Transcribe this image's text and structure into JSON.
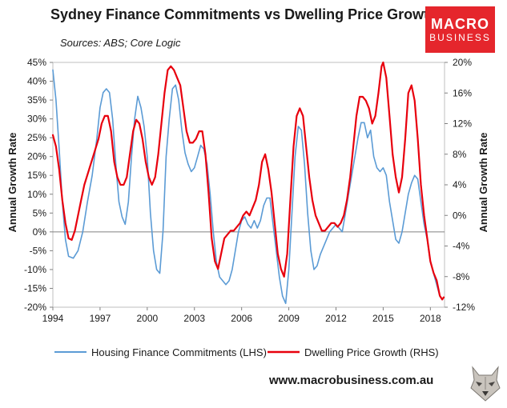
{
  "header": {
    "title": "Sydney Finance Commitments vs Dwelling Price Growth",
    "sources": "Sources: ABS; Core Logic"
  },
  "logo": {
    "line1": "MACRO",
    "line2": "BUSINESS"
  },
  "footer": {
    "website": "www.macrobusiness.com.au"
  },
  "chart_data": {
    "type": "line",
    "title": "Sydney Finance Commitments vs Dwelling Price Growth",
    "subtitle": "Sources: ABS; Core Logic",
    "xlabel": "",
    "ylabel_left": "Annual Growth Rate",
    "ylabel_right": "Annual Growth Rate",
    "xlim": [
      1994.0,
      2018.9
    ],
    "x_ticks": [
      1994,
      1997,
      2000,
      2003,
      2006,
      2009,
      2012,
      2015,
      2018
    ],
    "x_tick_labels": [
      "1994",
      "1997",
      "2000",
      "2003",
      "2006",
      "2009",
      "2012",
      "2015",
      "2018"
    ],
    "ylim_left": [
      -20,
      45
    ],
    "y_ticks_left": [
      -20,
      -15,
      -10,
      -5,
      0,
      5,
      10,
      15,
      20,
      25,
      30,
      35,
      40,
      45
    ],
    "y_tick_labels_left": [
      "-20%",
      "-15%",
      "-10%",
      "-5%",
      "0%",
      "5%",
      "10%",
      "15%",
      "20%",
      "25%",
      "30%",
      "35%",
      "40%",
      "45%"
    ],
    "ylim_right": [
      -12,
      20
    ],
    "y_ticks_right": [
      -12,
      -8,
      -4,
      0,
      4,
      8,
      12,
      16,
      20
    ],
    "y_tick_labels_right": [
      "-12%",
      "-8%",
      "-4%",
      "0%",
      "4%",
      "8%",
      "12%",
      "16%",
      "20%"
    ],
    "grid": false,
    "legend_position": "bottom",
    "series": [
      {
        "name": "Housing Finance Commitments (LHS)",
        "axis": "left",
        "color": "#5b9bd5",
        "points": [
          [
            1994.0,
            43
          ],
          [
            1994.2,
            35
          ],
          [
            1994.4,
            22
          ],
          [
            1994.6,
            8
          ],
          [
            1994.8,
            -2
          ],
          [
            1995.0,
            -6.5
          ],
          [
            1995.3,
            -7
          ],
          [
            1995.6,
            -5
          ],
          [
            1995.9,
            0
          ],
          [
            1996.2,
            8
          ],
          [
            1996.5,
            15
          ],
          [
            1996.8,
            25
          ],
          [
            1997.0,
            33
          ],
          [
            1997.2,
            37
          ],
          [
            1997.4,
            38
          ],
          [
            1997.6,
            37
          ],
          [
            1997.8,
            30
          ],
          [
            1998.0,
            18
          ],
          [
            1998.2,
            8
          ],
          [
            1998.4,
            4
          ],
          [
            1998.6,
            2
          ],
          [
            1998.8,
            8
          ],
          [
            1999.0,
            20
          ],
          [
            1999.2,
            30
          ],
          [
            1999.4,
            36
          ],
          [
            1999.6,
            33
          ],
          [
            1999.8,
            28
          ],
          [
            2000.0,
            20
          ],
          [
            2000.2,
            5
          ],
          [
            2000.4,
            -5
          ],
          [
            2000.6,
            -10
          ],
          [
            2000.8,
            -11
          ],
          [
            2001.0,
            0
          ],
          [
            2001.2,
            20
          ],
          [
            2001.4,
            30
          ],
          [
            2001.6,
            38
          ],
          [
            2001.8,
            39
          ],
          [
            2002.0,
            35
          ],
          [
            2002.2,
            27
          ],
          [
            2002.4,
            21
          ],
          [
            2002.6,
            18
          ],
          [
            2002.8,
            16
          ],
          [
            2003.0,
            17
          ],
          [
            2003.2,
            20
          ],
          [
            2003.4,
            23
          ],
          [
            2003.6,
            22
          ],
          [
            2003.8,
            18
          ],
          [
            2004.0,
            10
          ],
          [
            2004.2,
            0
          ],
          [
            2004.4,
            -8
          ],
          [
            2004.6,
            -12
          ],
          [
            2004.8,
            -13
          ],
          [
            2005.0,
            -14
          ],
          [
            2005.2,
            -13
          ],
          [
            2005.4,
            -10
          ],
          [
            2005.6,
            -5
          ],
          [
            2005.8,
            0
          ],
          [
            2006.0,
            3
          ],
          [
            2006.2,
            4
          ],
          [
            2006.4,
            2
          ],
          [
            2006.6,
            1
          ],
          [
            2006.8,
            3
          ],
          [
            2007.0,
            1
          ],
          [
            2007.2,
            3
          ],
          [
            2007.4,
            7
          ],
          [
            2007.6,
            9
          ],
          [
            2007.8,
            9
          ],
          [
            2008.0,
            2
          ],
          [
            2008.2,
            -5
          ],
          [
            2008.4,
            -12
          ],
          [
            2008.6,
            -17
          ],
          [
            2008.8,
            -19
          ],
          [
            2009.0,
            -10
          ],
          [
            2009.2,
            5
          ],
          [
            2009.4,
            20
          ],
          [
            2009.6,
            28
          ],
          [
            2009.8,
            27
          ],
          [
            2010.0,
            18
          ],
          [
            2010.2,
            5
          ],
          [
            2010.4,
            -5
          ],
          [
            2010.6,
            -10
          ],
          [
            2010.8,
            -9
          ],
          [
            2011.0,
            -6
          ],
          [
            2011.2,
            -4
          ],
          [
            2011.4,
            -2
          ],
          [
            2011.6,
            0
          ],
          [
            2011.8,
            1
          ],
          [
            2012.0,
            2
          ],
          [
            2012.2,
            1
          ],
          [
            2012.4,
            0
          ],
          [
            2012.6,
            5
          ],
          [
            2012.8,
            10
          ],
          [
            2013.0,
            15
          ],
          [
            2013.2,
            20
          ],
          [
            2013.4,
            25
          ],
          [
            2013.6,
            29
          ],
          [
            2013.8,
            29
          ],
          [
            2014.0,
            25
          ],
          [
            2014.2,
            27
          ],
          [
            2014.4,
            20
          ],
          [
            2014.6,
            17
          ],
          [
            2014.8,
            16
          ],
          [
            2015.0,
            17
          ],
          [
            2015.2,
            15
          ],
          [
            2015.4,
            8
          ],
          [
            2015.6,
            3
          ],
          [
            2015.8,
            -2
          ],
          [
            2016.0,
            -3
          ],
          [
            2016.2,
            0
          ],
          [
            2016.4,
            5
          ],
          [
            2016.6,
            10
          ],
          [
            2016.8,
            13
          ],
          [
            2017.0,
            15
          ],
          [
            2017.2,
            14
          ],
          [
            2017.4,
            8
          ],
          [
            2017.6,
            2
          ],
          [
            2017.8,
            -2
          ],
          [
            2018.0,
            -8
          ],
          [
            2018.2,
            -11
          ],
          [
            2018.4,
            -14
          ],
          [
            2018.6,
            -17
          ],
          [
            2018.75,
            -18
          ]
        ]
      },
      {
        "name": "Dwelling Price Growth (RHS)",
        "axis": "right",
        "color": "#e8000d",
        "points": [
          [
            1994.0,
            10.5
          ],
          [
            1994.2,
            9
          ],
          [
            1994.4,
            6
          ],
          [
            1994.6,
            2
          ],
          [
            1994.8,
            -1
          ],
          [
            1995.0,
            -3
          ],
          [
            1995.2,
            -3.2
          ],
          [
            1995.4,
            -2
          ],
          [
            1995.6,
            0
          ],
          [
            1995.8,
            2
          ],
          [
            1996.0,
            4
          ],
          [
            1996.3,
            6
          ],
          [
            1996.6,
            8
          ],
          [
            1996.9,
            10
          ],
          [
            1997.1,
            12
          ],
          [
            1997.3,
            13
          ],
          [
            1997.5,
            13
          ],
          [
            1997.7,
            11
          ],
          [
            1997.9,
            7
          ],
          [
            1998.1,
            5
          ],
          [
            1998.3,
            4
          ],
          [
            1998.5,
            4
          ],
          [
            1998.7,
            5
          ],
          [
            1998.9,
            8
          ],
          [
            1999.1,
            11
          ],
          [
            1999.3,
            12.5
          ],
          [
            1999.5,
            12
          ],
          [
            1999.7,
            10
          ],
          [
            1999.9,
            7
          ],
          [
            2000.1,
            5
          ],
          [
            2000.3,
            4
          ],
          [
            2000.5,
            5
          ],
          [
            2000.7,
            8
          ],
          [
            2000.9,
            12
          ],
          [
            2001.1,
            16
          ],
          [
            2001.3,
            19
          ],
          [
            2001.5,
            19.5
          ],
          [
            2001.7,
            19
          ],
          [
            2001.9,
            18
          ],
          [
            2002.1,
            17
          ],
          [
            2002.3,
            14
          ],
          [
            2002.5,
            11
          ],
          [
            2002.7,
            9.5
          ],
          [
            2002.9,
            9.5
          ],
          [
            2003.1,
            10
          ],
          [
            2003.3,
            11
          ],
          [
            2003.5,
            11
          ],
          [
            2003.7,
            8
          ],
          [
            2003.9,
            3
          ],
          [
            2004.1,
            -3
          ],
          [
            2004.3,
            -6
          ],
          [
            2004.5,
            -7
          ],
          [
            2004.7,
            -5
          ],
          [
            2004.9,
            -3
          ],
          [
            2005.1,
            -2.5
          ],
          [
            2005.3,
            -2
          ],
          [
            2005.5,
            -2
          ],
          [
            2005.7,
            -1.5
          ],
          [
            2005.9,
            -1
          ],
          [
            2006.1,
            0
          ],
          [
            2006.3,
            0.5
          ],
          [
            2006.5,
            0
          ],
          [
            2006.7,
            1
          ],
          [
            2006.9,
            2
          ],
          [
            2007.1,
            4
          ],
          [
            2007.3,
            7
          ],
          [
            2007.5,
            8
          ],
          [
            2007.7,
            6
          ],
          [
            2007.9,
            3
          ],
          [
            2008.1,
            -1
          ],
          [
            2008.3,
            -5
          ],
          [
            2008.5,
            -7
          ],
          [
            2008.7,
            -8
          ],
          [
            2008.9,
            -5
          ],
          [
            2009.1,
            2
          ],
          [
            2009.3,
            9
          ],
          [
            2009.5,
            13
          ],
          [
            2009.7,
            14
          ],
          [
            2009.9,
            13
          ],
          [
            2010.1,
            9
          ],
          [
            2010.3,
            5
          ],
          [
            2010.5,
            2
          ],
          [
            2010.7,
            0
          ],
          [
            2010.9,
            -1
          ],
          [
            2011.1,
            -2
          ],
          [
            2011.3,
            -2
          ],
          [
            2011.5,
            -1.5
          ],
          [
            2011.7,
            -1
          ],
          [
            2011.9,
            -1
          ],
          [
            2012.1,
            -1.5
          ],
          [
            2012.3,
            -1
          ],
          [
            2012.5,
            0
          ],
          [
            2012.7,
            2
          ],
          [
            2012.9,
            5
          ],
          [
            2013.1,
            9
          ],
          [
            2013.3,
            13
          ],
          [
            2013.5,
            15.5
          ],
          [
            2013.7,
            15.5
          ],
          [
            2013.9,
            15
          ],
          [
            2014.1,
            14
          ],
          [
            2014.3,
            12
          ],
          [
            2014.5,
            13
          ],
          [
            2014.7,
            16
          ],
          [
            2014.9,
            19.5
          ],
          [
            2015.0,
            20
          ],
          [
            2015.2,
            18
          ],
          [
            2015.4,
            13
          ],
          [
            2015.6,
            8
          ],
          [
            2015.8,
            5
          ],
          [
            2016.0,
            3
          ],
          [
            2016.2,
            5
          ],
          [
            2016.4,
            10
          ],
          [
            2016.6,
            16
          ],
          [
            2016.8,
            17
          ],
          [
            2017.0,
            15
          ],
          [
            2017.2,
            10
          ],
          [
            2017.4,
            4
          ],
          [
            2017.6,
            0
          ],
          [
            2017.8,
            -3
          ],
          [
            2018.0,
            -6
          ],
          [
            2018.2,
            -7.5
          ],
          [
            2018.4,
            -8.5
          ],
          [
            2018.6,
            -10.5
          ],
          [
            2018.75,
            -11
          ],
          [
            2018.85,
            -10.7
          ]
        ]
      }
    ]
  }
}
